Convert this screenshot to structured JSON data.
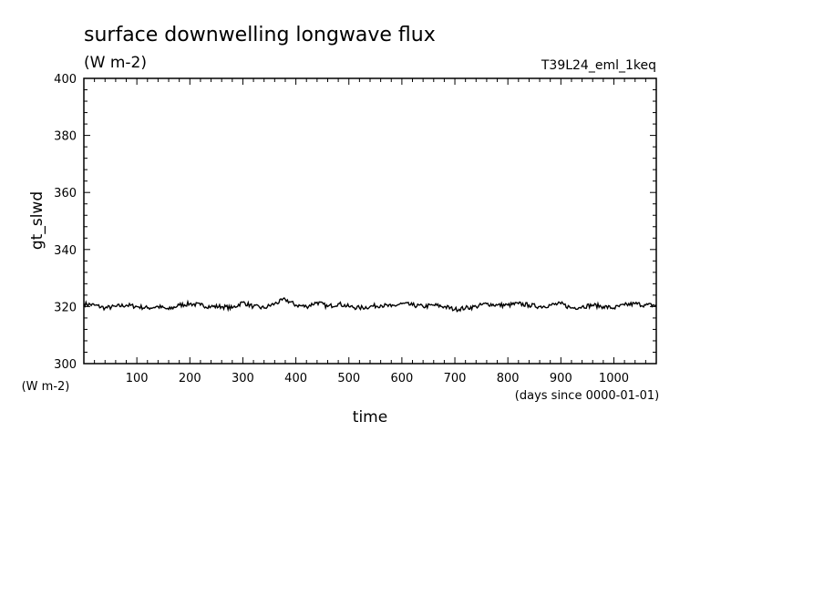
{
  "chart_data": {
    "type": "line",
    "title": "surface downwelling longwave flux",
    "subtitle": "(W m-2)",
    "annotation": "T39L24_eml_1keq",
    "xlabel": "time",
    "xunits": "(days since 0000-01-01)",
    "ylabel": "gt_slwd",
    "yunits": "(W m-2)",
    "xlim": [
      0,
      1080
    ],
    "ylim": [
      300,
      400
    ],
    "xticks": [
      100,
      200,
      300,
      400,
      500,
      600,
      700,
      800,
      900,
      1000
    ],
    "yticks": [
      300,
      320,
      340,
      360,
      380,
      400
    ],
    "grid": false,
    "series": [
      {
        "color": "#000000",
        "x": [
          0,
          20,
          40,
          60,
          80,
          100,
          120,
          140,
          160,
          180,
          200,
          220,
          240,
          260,
          280,
          300,
          320,
          340,
          360,
          380,
          400,
          420,
          440,
          460,
          480,
          500,
          520,
          540,
          560,
          580,
          600,
          620,
          640,
          660,
          680,
          700,
          720,
          740,
          760,
          780,
          800,
          820,
          840,
          860,
          880,
          900,
          920,
          940,
          960,
          980,
          1000,
          1020,
          1040,
          1060,
          1080
        ],
        "y": [
          321,
          320.5,
          319.5,
          320,
          320.5,
          320,
          319.5,
          320,
          319,
          320.5,
          321,
          320.5,
          320,
          320,
          319.5,
          321.5,
          320,
          319.5,
          321,
          322.5,
          320.5,
          320,
          321.5,
          320,
          321,
          320,
          319.5,
          320,
          320.5,
          320,
          321,
          320.5,
          320,
          320.5,
          320,
          319,
          319.5,
          320,
          321,
          320.5,
          320.5,
          321,
          320.5,
          320,
          320.5,
          321,
          319.5,
          320,
          320.5,
          320,
          319.5,
          320.5,
          321,
          320.5,
          320.5
        ]
      }
    ]
  }
}
